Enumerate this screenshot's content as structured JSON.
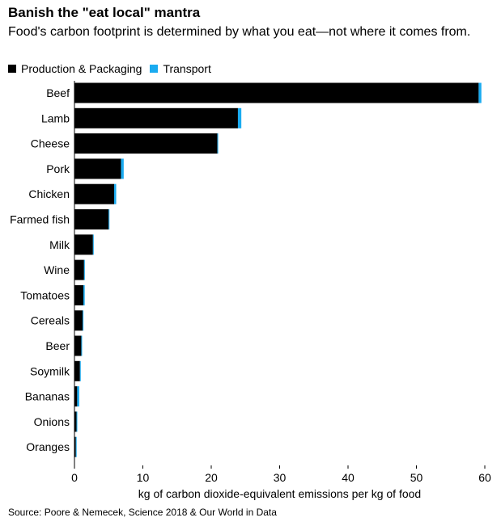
{
  "header": {
    "title": "Banish the \"eat local\" mantra",
    "subtitle": "Food's carbon footprint is determined by what you eat—not where it comes from."
  },
  "footer": {
    "source": "Source: Poore & Nemecek, Science 2018 & Our World in Data"
  },
  "colors": {
    "production": "#000000",
    "transport": "#1aabf0"
  },
  "chart_data": {
    "type": "bar",
    "orientation": "horizontal",
    "stacked": true,
    "categories": [
      "Beef",
      "Lamb",
      "Cheese",
      "Pork",
      "Chicken",
      "Farmed fish",
      "Milk",
      "Wine",
      "Tomatoes",
      "Cereals",
      "Beer",
      "Soymilk",
      "Bananas",
      "Onions",
      "Oranges"
    ],
    "series": [
      {
        "name": "Production & Packaging",
        "values": [
          59.1,
          23.9,
          20.9,
          6.8,
          5.8,
          5.0,
          2.7,
          1.4,
          1.3,
          1.2,
          1.0,
          0.8,
          0.4,
          0.3,
          0.2
        ]
      },
      {
        "name": "Transport",
        "values": [
          0.4,
          0.5,
          0.1,
          0.4,
          0.3,
          0.1,
          0.1,
          0.1,
          0.2,
          0.1,
          0.1,
          0.1,
          0.3,
          0.1,
          0.1
        ]
      }
    ],
    "xlabel": "kg of carbon dioxide-equivalent emissions per kg of food",
    "ylabel": "",
    "xlim": [
      0,
      60
    ],
    "xticks": [
      0,
      10,
      20,
      30,
      40,
      50,
      60
    ],
    "grid": false,
    "legend": "top-left"
  }
}
